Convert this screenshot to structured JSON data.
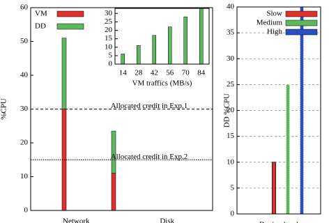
{
  "chart_data": [
    {
      "type": "bar",
      "stacked": true,
      "y_label": "%CPU",
      "categories": [
        "Network",
        "Disk"
      ],
      "series": [
        {
          "name": "VM",
          "color": "#e0302a",
          "values": [
            30,
            11
          ]
        },
        {
          "name": "DD",
          "color": "#5cb85c",
          "values": [
            21,
            12.5
          ]
        }
      ],
      "ylim": [
        0,
        60
      ],
      "yticks": [
        0,
        10,
        20,
        30,
        40,
        50,
        60
      ],
      "annotations": [
        {
          "text": "Allocated credit in Exp.1",
          "value": 30
        },
        {
          "text": "Allocated credit in Exp.2",
          "value": 15
        }
      ]
    },
    {
      "type": "bar",
      "x_label": "VM traffics (MB/s)",
      "categories": [
        14,
        28,
        42,
        56,
        70,
        84
      ],
      "values": [
        6,
        11,
        17,
        22,
        28,
        33
      ],
      "color": "#5cb85c",
      "ylim": [
        0,
        33
      ],
      "yticks": [
        0,
        5,
        10,
        15,
        20,
        25,
        30
      ]
    },
    {
      "type": "bar",
      "y_label": "DD %CPU",
      "grid": true,
      "categories": [
        "Device-level"
      ],
      "series": [
        {
          "name": "Slow",
          "color": "#e0302a",
          "values": [
            10
          ]
        },
        {
          "name": "Medium",
          "color": "#5cb85c",
          "values": [
            25
          ]
        },
        {
          "name": "High",
          "color": "#2a4fc0",
          "values": [
            40
          ]
        }
      ],
      "ylim": [
        0,
        40
      ],
      "yticks": [
        0,
        5,
        10,
        15,
        20,
        25,
        30,
        35,
        40
      ]
    }
  ]
}
